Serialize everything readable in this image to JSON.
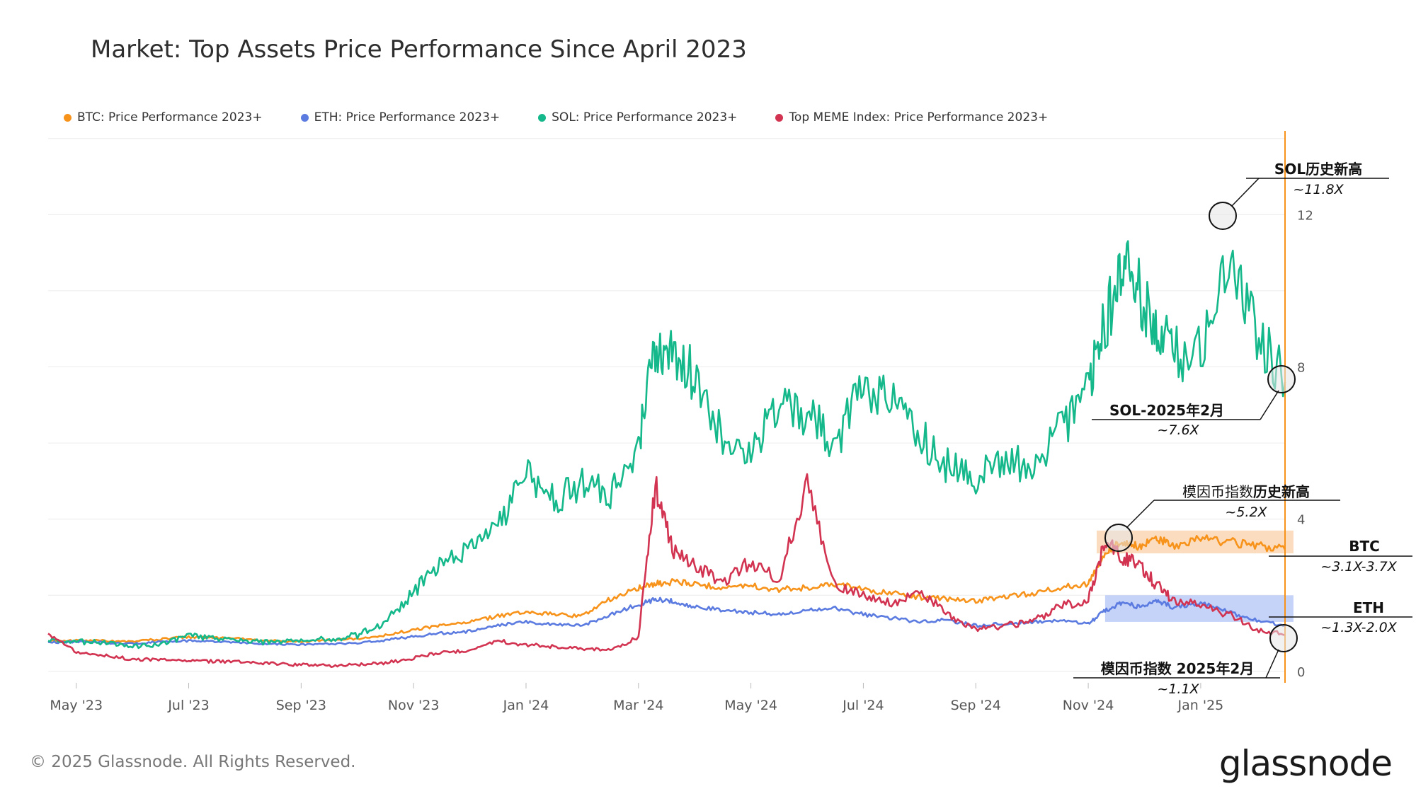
{
  "chart_data": {
    "type": "line",
    "title": "Market: Top Assets Price Performance Since April 2023",
    "x_ticks": [
      "May '23",
      "Jul '23",
      "Sep '23",
      "Nov '23",
      "Jan '24",
      "Mar '24",
      "May '24",
      "Jul '24",
      "Sep '24",
      "Nov '24",
      "Jan '25"
    ],
    "x_tick_pos": [
      0,
      2,
      4,
      6,
      8,
      10,
      12,
      14,
      16,
      18,
      20
    ],
    "y_ticks": [
      "0",
      "4",
      "8",
      "12"
    ],
    "y_tick_values": [
      0,
      4,
      8,
      12
    ],
    "ylim": [
      -0.3,
      14.2
    ],
    "xlim": [
      -0.5,
      21.5
    ],
    "legend_position": "top-left",
    "series": [
      {
        "name": "BTC: Price Performance 2023+",
        "color": "#f7931a",
        "x": [
          -0.5,
          0,
          0.5,
          1,
          1.5,
          2,
          2.5,
          3,
          3.5,
          4,
          4.5,
          5,
          5.5,
          6,
          6.5,
          7,
          7.5,
          8,
          8.5,
          9,
          9.5,
          10,
          10.3,
          10.6,
          11,
          11.5,
          12,
          12.5,
          13,
          13.5,
          14,
          14.5,
          15,
          15.5,
          16,
          16.5,
          17,
          17.5,
          18,
          18.3,
          18.6,
          18.9,
          19.2,
          19.5,
          20,
          20.5,
          21,
          21.5
        ],
        "y": [
          0.8,
          0.82,
          0.8,
          0.78,
          0.85,
          0.9,
          0.88,
          0.85,
          0.8,
          0.78,
          0.82,
          0.85,
          0.95,
          1.1,
          1.2,
          1.3,
          1.45,
          1.55,
          1.5,
          1.45,
          1.9,
          2.2,
          2.3,
          2.35,
          2.3,
          2.2,
          2.25,
          2.15,
          2.2,
          2.3,
          2.15,
          2.05,
          1.95,
          1.9,
          1.85,
          1.95,
          2.05,
          2.2,
          2.3,
          3.1,
          3.4,
          3.3,
          3.5,
          3.3,
          3.5,
          3.4,
          3.3,
          3.2
        ]
      },
      {
        "name": "ETH: Price Performance 2023+",
        "color": "#5b7be0",
        "x": [
          -0.5,
          0,
          0.5,
          1,
          1.5,
          2,
          2.5,
          3,
          3.5,
          4,
          4.5,
          5,
          5.5,
          6,
          6.5,
          7,
          7.5,
          8,
          8.5,
          9,
          9.5,
          10,
          10.3,
          10.6,
          11,
          11.5,
          12,
          12.5,
          13,
          13.5,
          14,
          14.5,
          15,
          15.5,
          16,
          16.5,
          17,
          17.5,
          18,
          18.3,
          18.6,
          18.9,
          19.2,
          19.5,
          20,
          20.5,
          21,
          21.5
        ],
        "y": [
          0.75,
          0.78,
          0.76,
          0.72,
          0.78,
          0.8,
          0.78,
          0.74,
          0.72,
          0.7,
          0.72,
          0.75,
          0.82,
          0.92,
          1.0,
          1.05,
          1.2,
          1.3,
          1.22,
          1.2,
          1.5,
          1.75,
          1.9,
          1.85,
          1.7,
          1.6,
          1.55,
          1.5,
          1.6,
          1.65,
          1.5,
          1.4,
          1.3,
          1.35,
          1.2,
          1.25,
          1.3,
          1.35,
          1.25,
          1.6,
          1.8,
          1.7,
          1.85,
          1.7,
          1.8,
          1.55,
          1.35,
          1.2
        ]
      },
      {
        "name": "SOL: Price Performance 2023+",
        "color": "#14b88a",
        "x": [
          -0.5,
          0,
          0.5,
          1,
          1.5,
          2,
          2.5,
          3,
          3.5,
          4,
          4.5,
          5,
          5.5,
          6,
          6.5,
          7,
          7.5,
          8,
          8.5,
          9,
          9.5,
          10,
          10.3,
          10.6,
          11,
          11.5,
          12,
          12.5,
          13,
          13.5,
          14,
          14.5,
          15,
          15.5,
          16,
          16.5,
          17,
          17.5,
          18,
          18.3,
          18.6,
          18.9,
          19.2,
          19.5,
          20,
          20.5,
          21,
          21.5
        ],
        "y": [
          0.8,
          0.78,
          0.75,
          0.65,
          0.7,
          0.95,
          0.85,
          0.8,
          0.75,
          0.8,
          0.85,
          0.95,
          1.3,
          2.1,
          2.8,
          3.2,
          3.8,
          5.2,
          4.5,
          4.9,
          4.7,
          6.0,
          8.5,
          8.2,
          7.8,
          6.2,
          5.8,
          7.0,
          6.8,
          5.9,
          7.5,
          7.0,
          6.2,
          5.4,
          5.0,
          5.6,
          5.3,
          6.3,
          7.3,
          9.2,
          10.6,
          10.0,
          9.2,
          8.3,
          8.4,
          11.2,
          9.0,
          7.6
        ]
      },
      {
        "name": "Top MEME Index: Price Performance 2023+",
        "color": "#d23350",
        "x": [
          -0.5,
          0,
          0.5,
          1,
          1.5,
          2,
          2.5,
          3,
          3.5,
          4,
          4.5,
          5,
          5.5,
          6,
          6.5,
          7,
          7.5,
          8,
          8.5,
          9,
          9.5,
          10,
          10.3,
          10.6,
          11,
          11.5,
          12,
          12.5,
          13,
          13.5,
          14,
          14.5,
          15,
          15.5,
          16,
          16.5,
          17,
          17.5,
          18,
          18.3,
          18.6,
          18.9,
          19.2,
          19.5,
          20,
          20.5,
          21,
          21.5
        ],
        "y": [
          1.0,
          0.5,
          0.42,
          0.32,
          0.3,
          0.28,
          0.26,
          0.24,
          0.2,
          0.17,
          0.15,
          0.18,
          0.22,
          0.35,
          0.5,
          0.55,
          0.8,
          0.7,
          0.65,
          0.6,
          0.55,
          0.9,
          4.9,
          3.2,
          2.8,
          2.3,
          2.9,
          2.4,
          4.9,
          2.2,
          2.0,
          1.8,
          2.1,
          1.5,
          1.1,
          1.2,
          1.3,
          1.7,
          1.9,
          3.4,
          3.0,
          2.8,
          2.3,
          1.9,
          1.7,
          1.5,
          1.1,
          0.95
        ]
      }
    ]
  },
  "annotations": {
    "sol_ath_title": "SOL历史新高",
    "sol_ath_value": "~11.8X",
    "sol_now_title": "SOL-2025年2月",
    "sol_now_value": "~7.6X",
    "meme_ath_title_prefix": "模因币指数",
    "meme_ath_title_suffix": "历史新高",
    "meme_ath_value": "~5.2X",
    "btc_title": "BTC",
    "btc_value": "~3.1X-3.7X",
    "eth_title": "ETH",
    "eth_value": "~1.3X-2.0X",
    "meme_now_title": "模因币指数 2025年2月",
    "meme_now_value": "~1.1X"
  },
  "footer": {
    "copyright": "© 2025 Glassnode. All Rights Reserved.",
    "brand": "glassnode"
  },
  "colors": {
    "grid": "#ececec",
    "axis_text": "#555555",
    "current_line": "#f7931a",
    "btc_band": "#f8c08a",
    "eth_band": "#9fb6f5"
  }
}
